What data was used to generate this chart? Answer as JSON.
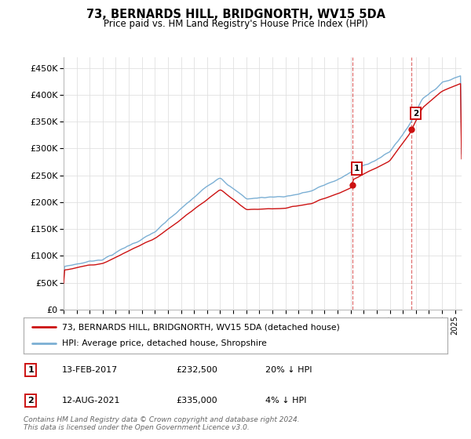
{
  "title": "73, BERNARDS HILL, BRIDGNORTH, WV15 5DA",
  "subtitle": "Price paid vs. HM Land Registry's House Price Index (HPI)",
  "ylabel_ticks": [
    "£0",
    "£50K",
    "£100K",
    "£150K",
    "£200K",
    "£250K",
    "£300K",
    "£350K",
    "£400K",
    "£450K"
  ],
  "ytick_values": [
    0,
    50000,
    100000,
    150000,
    200000,
    250000,
    300000,
    350000,
    400000,
    450000
  ],
  "ylim": [
    0,
    470000
  ],
  "xlim_start": 1995.0,
  "xlim_end": 2025.5,
  "hpi_color": "#7bafd4",
  "price_color": "#cc1111",
  "marker1_year": 2017.12,
  "marker1_price": 232500,
  "marker2_year": 2021.62,
  "marker2_price": 335000,
  "annotation1_label": "1",
  "annotation1_date": "13-FEB-2017",
  "annotation1_price": "£232,500",
  "annotation1_hpi": "20% ↓ HPI",
  "annotation2_label": "2",
  "annotation2_date": "12-AUG-2021",
  "annotation2_price": "£335,000",
  "annotation2_hpi": "4% ↓ HPI",
  "legend_line1": "73, BERNARDS HILL, BRIDGNORTH, WV15 5DA (detached house)",
  "legend_line2": "HPI: Average price, detached house, Shropshire",
  "footer": "Contains HM Land Registry data © Crown copyright and database right 2024.\nThis data is licensed under the Open Government Licence v3.0.",
  "background_color": "#ffffff",
  "grid_color": "#e0e0e0"
}
